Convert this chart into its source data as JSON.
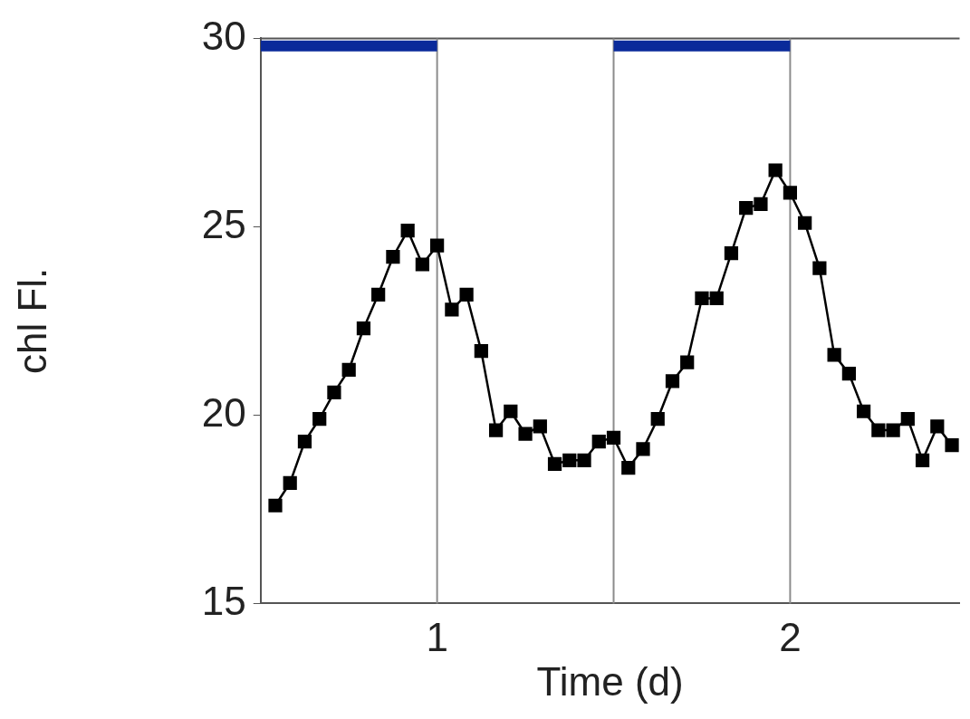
{
  "chart_data": {
    "type": "line",
    "xlabel": "Time (d)",
    "ylabel": "chl Fl.",
    "x": [
      0.5417,
      0.5833,
      0.625,
      0.6667,
      0.7083,
      0.75,
      0.7917,
      0.8333,
      0.875,
      0.9167,
      0.9583,
      1.0,
      1.0417,
      1.0833,
      1.125,
      1.1667,
      1.2083,
      1.25,
      1.2917,
      1.3333,
      1.375,
      1.4167,
      1.4583,
      1.5,
      1.5417,
      1.5833,
      1.625,
      1.6667,
      1.7083,
      1.75,
      1.7917,
      1.8333,
      1.875,
      1.9167,
      1.9583,
      2.0,
      2.0417,
      2.0833,
      2.125,
      2.1667,
      2.2083,
      2.25,
      2.2917,
      2.3333,
      2.375,
      2.4167,
      2.4583
    ],
    "series": [
      {
        "color": "#000000",
        "values": [
          17.6,
          18.2,
          19.3,
          19.9,
          20.6,
          21.2,
          22.3,
          23.2,
          24.2,
          24.9,
          24.0,
          24.5,
          22.8,
          23.2,
          21.7,
          19.6,
          20.1,
          19.5,
          19.7,
          18.7,
          18.8,
          18.8,
          19.3,
          19.4,
          18.6,
          19.1,
          19.9,
          20.9,
          21.4,
          23.1,
          23.1,
          24.3,
          25.5,
          25.6,
          26.5,
          25.9,
          25.1,
          23.9,
          21.6,
          21.1,
          20.1,
          19.6,
          19.6,
          19.9,
          18.8,
          19.7,
          19.2
        ]
      },
      {
        "color": "#0a2a9a",
        "marker": "none",
        "x": [
          0.5,
          1,
          1.25,
          1.5,
          2
        ],
        "values": [
          29.8,
          29.8,
          null,
          29.8,
          29.8
        ]
      }
    ],
    "xlim": [
      0.5,
      2.48
    ],
    "xticks": [
      1,
      2
    ],
    "ylim": [
      15,
      30
    ],
    "yticks": [
      15,
      20,
      25,
      30
    ],
    "marker": "square",
    "line_style": "solid",
    "grid": false,
    "legend": false,
    "ref_lines": [
      {
        "axis": "x",
        "value": 1,
        "color": "#8c8c8c"
      },
      {
        "axis": "x",
        "value": 1.5,
        "color": "#8c8c8c"
      },
      {
        "axis": "x",
        "value": 2,
        "color": "#8c8c8c"
      }
    ]
  }
}
